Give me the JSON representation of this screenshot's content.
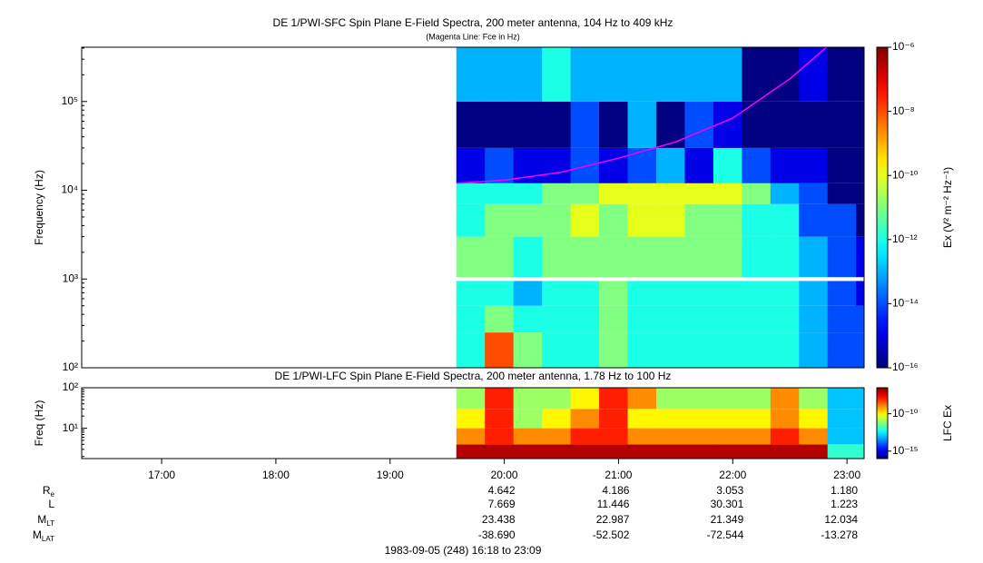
{
  "chart_data": [
    {
      "type": "heatmap",
      "title": "DE 1/PWI-SFC  Spin Plane E-Field Spectra, 200 meter antenna, 104 Hz to 409 kHz",
      "subtitle": "(Magenta Line: Fce in Hz)",
      "ylabel": "Frequency (Hz)",
      "colorbar_label": "Ex (V² m⁻² Hz⁻¹)",
      "colormap": "jet",
      "log_y": true,
      "log_color": true,
      "xlim": [
        16.3,
        23.15
      ],
      "ylim": [
        100,
        409000
      ],
      "yticks": [
        {
          "value": 100,
          "label": "10²"
        },
        {
          "value": 1000,
          "label": "10³"
        },
        {
          "value": 10000,
          "label": "10⁴"
        },
        {
          "value": 100000,
          "label": "10⁵"
        }
      ],
      "clim": [
        1e-16,
        1e-06
      ],
      "cticks": [
        {
          "value": 1e-06,
          "label": "10⁻⁶"
        },
        {
          "value": 1e-08,
          "label": "10⁻⁸"
        },
        {
          "value": 1e-10,
          "label": "10⁻¹⁰"
        },
        {
          "value": 1e-12,
          "label": "10⁻¹²"
        },
        {
          "value": 1e-14,
          "label": "10⁻¹⁴"
        },
        {
          "value": 1e-16,
          "label": "10⁻¹⁶"
        }
      ],
      "x": [
        19.58,
        19.83,
        20.08,
        20.33,
        20.58,
        20.83,
        21.08,
        21.33,
        21.58,
        21.83,
        22.08,
        22.33,
        22.58,
        22.83,
        23.08,
        23.15
      ],
      "y": [
        100,
        250,
        500,
        950,
        1050,
        3000,
        7000,
        12000,
        30000,
        100000,
        409000
      ],
      "z": [
        [
          1e-12,
          1e-08,
          1e-11,
          1e-12,
          1e-12,
          1e-11,
          1e-12,
          1e-12,
          1e-12,
          1e-12,
          1e-12,
          1e-12,
          1e-13,
          1e-14,
          1e-14
        ],
        [
          1e-12,
          1e-11,
          1e-12,
          1e-12,
          1e-12,
          1e-11,
          1e-12,
          1e-12,
          1e-12,
          1e-12,
          1e-12,
          1e-12,
          1e-13,
          1e-14,
          1e-14
        ],
        [
          1e-12,
          1e-12,
          1e-13,
          1e-12,
          1e-12,
          1e-11,
          1e-12,
          1e-12,
          1e-12,
          1e-12,
          1e-12,
          1e-12,
          1e-13,
          1e-14,
          1e-15
        ],
        [
          null,
          null,
          null,
          null,
          null,
          null,
          null,
          null,
          null,
          null,
          null,
          null,
          null,
          null,
          null
        ],
        [
          1e-11,
          1e-11,
          1e-12,
          1e-11,
          1e-11,
          1e-11,
          1e-11,
          1e-11,
          1e-11,
          1e-11,
          1e-12,
          1e-12,
          1e-13,
          1e-14,
          1e-15
        ],
        [
          1e-12,
          1e-11,
          1e-11,
          1e-11,
          1e-10,
          1e-11,
          1e-10,
          1e-10,
          1e-11,
          1e-11,
          1e-12,
          1e-12,
          1e-14,
          1e-14,
          1e-16
        ],
        [
          1e-12,
          1e-12,
          1e-12,
          1e-11,
          1e-11,
          1e-10,
          1e-10,
          1e-10,
          1e-10,
          1e-10,
          1e-11,
          1e-13,
          1e-14,
          1e-16,
          1e-16
        ],
        [
          1e-15,
          1e-14,
          1e-15,
          1e-15,
          1e-14,
          1e-15,
          1e-14,
          1e-13,
          1e-15,
          1e-12,
          1e-14,
          1e-15,
          1e-15,
          1e-16,
          1e-16
        ],
        [
          1e-16,
          1e-16,
          1e-16,
          1e-16,
          1e-14,
          1e-16,
          1e-13,
          1e-16,
          1e-14,
          1e-15,
          1e-16,
          1e-16,
          1e-16,
          1e-16,
          1e-16
        ],
        [
          1e-13,
          1e-13,
          1e-13,
          1e-12,
          1e-13,
          1e-13,
          1e-13,
          1e-13,
          1e-13,
          1e-13,
          1e-16,
          1e-16,
          1e-15,
          1e-16,
          1e-16
        ]
      ],
      "overlay": {
        "type": "line",
        "color": "#ff00ff",
        "x": [
          19.58,
          20,
          20.5,
          21,
          21.5,
          22,
          22.5,
          22.82
        ],
        "y": [
          12000,
          13000,
          16000,
          23000,
          35000,
          65000,
          180000,
          409000
        ]
      }
    },
    {
      "type": "heatmap",
      "title": "DE 1/PWI-LFC  Spin Plane E-Field Spectra, 200 meter antenna, 1.78 Hz to 100 Hz",
      "ylabel": "Freq (Hz)",
      "colorbar_label": "LFC Ex",
      "colormap": "jet",
      "log_y": true,
      "log_color": true,
      "xlim": [
        16.3,
        23.15
      ],
      "ylim": [
        1.78,
        100
      ],
      "xticks": [
        {
          "value": 17,
          "label": "17:00"
        },
        {
          "value": 18,
          "label": "18:00"
        },
        {
          "value": 19,
          "label": "19:00"
        },
        {
          "value": 20,
          "label": "20:00"
        },
        {
          "value": 21,
          "label": "21:00"
        },
        {
          "value": 22,
          "label": "22:00"
        },
        {
          "value": 23,
          "label": "23:00"
        }
      ],
      "yticks": [
        {
          "value": 10,
          "label": "10¹"
        },
        {
          "value": 100,
          "label": "10²"
        }
      ],
      "clim": [
        1e-16,
        3e-07
      ],
      "cticks": [
        {
          "value": 1e-10,
          "label": "10⁻¹⁰"
        },
        {
          "value": 1e-15,
          "label": "10⁻¹⁵"
        }
      ],
      "x": [
        19.58,
        19.83,
        20.08,
        20.33,
        20.58,
        20.83,
        21.08,
        21.33,
        21.58,
        21.83,
        22.08,
        22.33,
        22.58,
        22.83,
        23.08,
        23.15
      ],
      "y": [
        1.78,
        4,
        10,
        30,
        100
      ],
      "z": [
        [
          1e-07,
          1e-07,
          1e-07,
          1e-07,
          1e-07,
          1e-07,
          1e-07,
          1e-07,
          1e-07,
          1e-07,
          1e-07,
          1e-07,
          1e-07,
          1e-12,
          1e-12
        ],
        [
          1e-09,
          1e-08,
          1e-09,
          1e-09,
          1e-08,
          1e-08,
          1e-09,
          1e-09,
          1e-09,
          1e-09,
          1e-09,
          1e-08,
          1e-09,
          1e-13,
          1e-13
        ],
        [
          1e-10,
          1e-08,
          1e-11,
          1e-10,
          1e-09,
          1e-08,
          1e-10,
          1e-10,
          1e-10,
          1e-10,
          1e-10,
          1e-09,
          1e-10,
          1e-13,
          1e-13
        ],
        [
          1e-11,
          1e-08,
          1e-11,
          1e-11,
          1e-10,
          1e-08,
          1e-09,
          1e-11,
          1e-11,
          1e-11,
          1e-11,
          1e-09,
          1e-11,
          1e-13,
          1e-13
        ]
      ]
    }
  ],
  "ephemeris": {
    "rows": [
      {
        "label": "R",
        "sub": "e",
        "values": [
          "4.642",
          "4.186",
          "3.053",
          "1.180"
        ]
      },
      {
        "label": "L",
        "values": [
          "7.669",
          "11.446",
          "30.301",
          "1.223"
        ]
      },
      {
        "label": "M",
        "sub": "LT",
        "values": [
          "23.438",
          "22.987",
          "21.349",
          "12.034"
        ]
      },
      {
        "label": "M",
        "sub": "LAT",
        "values": [
          "-38.690",
          "-52.502",
          "-72.544",
          "-13.278"
        ]
      }
    ]
  },
  "footer": "1983-09-05 (248) 16:18 to 23:09"
}
